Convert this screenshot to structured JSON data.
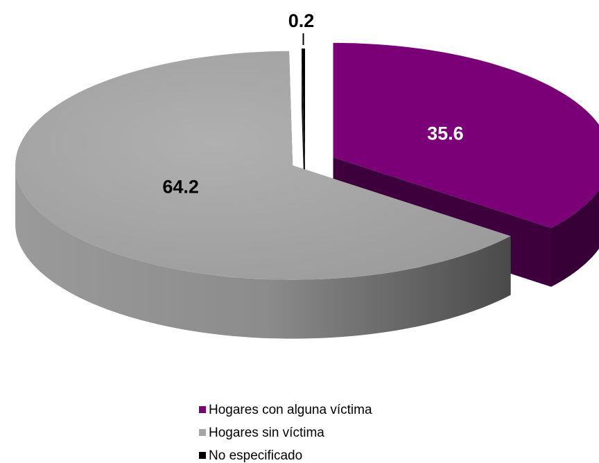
{
  "chart_data": {
    "type": "pie",
    "categories": [
      "Hogares con alguna víctima",
      "Hogares sin víctima",
      "No especificado"
    ],
    "values": [
      35.6,
      64.2,
      0.2
    ],
    "colors": [
      "#7b0078",
      "#a6a6a6",
      "#000000"
    ],
    "legend": "bottom"
  }
}
